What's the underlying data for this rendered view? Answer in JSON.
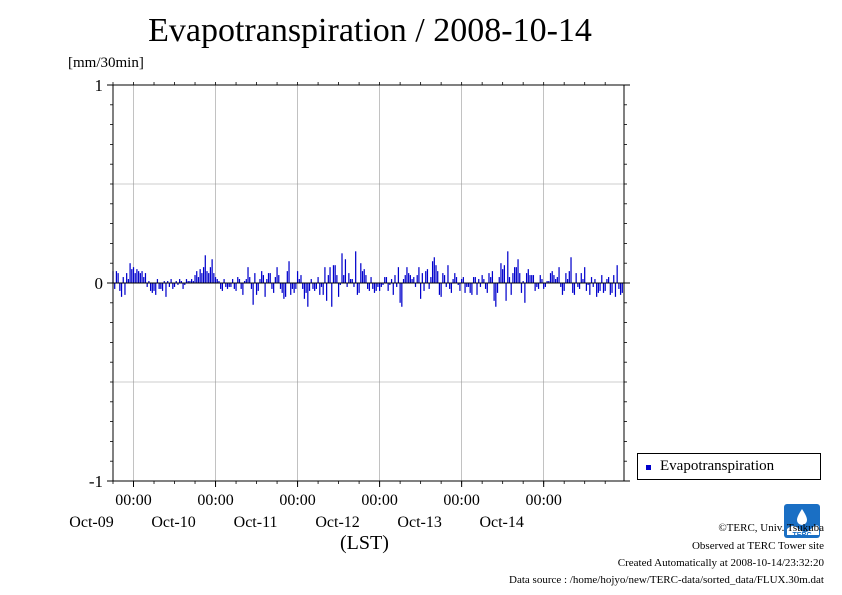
{
  "chart_data": {
    "type": "bar",
    "title": "Evapotranspiration / 2008-10-14",
    "ylabel": "[mm/30min]",
    "xlabel": "(LST)",
    "ylim": [
      -1,
      1
    ],
    "yticks": [
      "1",
      "0",
      "-1"
    ],
    "x_start": "2008-10-08T18:00",
    "x_end": "2008-10-14T23:30",
    "x_ticks": [
      {
        "time": "00:00",
        "date": "Oct-09"
      },
      {
        "time": "00:00",
        "date": "Oct-10"
      },
      {
        "time": "00:00",
        "date": "Oct-11"
      },
      {
        "time": "00:00",
        "date": "Oct-12"
      },
      {
        "time": "00:00",
        "date": "Oct-13"
      },
      {
        "time": "00:00",
        "date": "Oct-14"
      }
    ],
    "grid": true,
    "legend_position": "bottom-right",
    "series": [
      {
        "name": "Evapotranspiration",
        "color": "#0000cc",
        "interval_minutes": 30,
        "values": [
          0.06,
          -0.03,
          0.06,
          0.05,
          -0.04,
          -0.07,
          0.03,
          -0.06,
          0.05,
          0.02,
          0.1,
          0.07,
          0.08,
          0.05,
          0.07,
          0.06,
          0.05,
          0.06,
          0.03,
          0.05,
          -0.02,
          0.01,
          -0.04,
          -0.05,
          -0.04,
          -0.06,
          0.02,
          -0.03,
          -0.03,
          -0.04,
          0.01,
          -0.07,
          0.01,
          -0.02,
          0.02,
          -0.03,
          -0.02,
          0.01,
          -0.01,
          0.02,
          0.01,
          -0.03,
          -0.01,
          0.02,
          0.01,
          0.01,
          0.02,
          0.01,
          0.04,
          0.06,
          0.03,
          0.07,
          0.05,
          0.08,
          0.14,
          0.06,
          0.05,
          0.08,
          0.12,
          0.05,
          0.03,
          0.02,
          0.01,
          -0.03,
          -0.04,
          0.02,
          -0.02,
          -0.03,
          -0.02,
          -0.02,
          0.02,
          -0.03,
          -0.04,
          0.03,
          0.02,
          -0.03,
          -0.06,
          0.01,
          0.02,
          0.08,
          0.03,
          -0.03,
          -0.11,
          0.05,
          -0.06,
          -0.04,
          0.02,
          0.06,
          0.04,
          -0.07,
          0.02,
          0.05,
          0.05,
          -0.03,
          -0.05,
          0.03,
          0.08,
          0.04,
          -0.03,
          -0.05,
          -0.08,
          -0.07,
          0.06,
          0.11,
          -0.06,
          -0.03,
          -0.05,
          -0.03,
          0.06,
          0.02,
          0.04,
          -0.03,
          -0.08,
          -0.05,
          -0.12,
          -0.04,
          0.02,
          -0.03,
          -0.04,
          -0.03,
          0.03,
          -0.06,
          -0.02,
          -0.06,
          0.08,
          -0.09,
          0.04,
          0.08,
          -0.12,
          0.09,
          0.09,
          0.04,
          -0.07,
          -0.01,
          0.15,
          0.04,
          0.12,
          -0.02,
          0.05,
          0.02,
          0.02,
          -0.02,
          0.16,
          -0.06,
          -0.05,
          0.1,
          0.06,
          0.07,
          0.04,
          -0.03,
          -0.04,
          0.03,
          -0.03,
          -0.05,
          -0.04,
          -0.02,
          -0.04,
          -0.02,
          -0.01,
          0.03,
          0.03,
          -0.04,
          -0.01,
          0.02,
          -0.06,
          0.04,
          -0.02,
          0.08,
          -0.1,
          -0.12,
          0.02,
          0.04,
          0.08,
          0.05,
          0.04,
          0.02,
          0.03,
          -0.02,
          0.04,
          0.08,
          -0.08,
          0.05,
          -0.04,
          0.06,
          0.07,
          -0.03,
          0.03,
          0.11,
          0.13,
          0.09,
          0.06,
          -0.06,
          -0.07,
          0.05,
          0.04,
          -0.02,
          0.09,
          -0.03,
          -0.05,
          0.02,
          0.05,
          0.03,
          -0.01,
          -0.04,
          0.02,
          0.03,
          -0.05,
          -0.02,
          -0.02,
          -0.05,
          -0.06,
          0.03,
          0.03,
          -0.06,
          0.02,
          -0.02,
          0.04,
          0.02,
          -0.03,
          -0.05,
          0.05,
          0.03,
          0.06,
          -0.09,
          -0.12,
          -0.05,
          0.03,
          0.1,
          0.07,
          0.09,
          -0.09,
          0.16,
          0.03,
          -0.06,
          0.05,
          0.08,
          0.08,
          0.12,
          0.05,
          -0.05,
          0.01,
          -0.1,
          0.05,
          0.07,
          0.04,
          0.04,
          0.04,
          -0.04,
          -0.02,
          -0.03,
          0.04,
          0.02,
          -0.03,
          -0.02,
          0.01,
          0.01,
          0.05,
          0.06,
          0.04,
          0.02,
          0.03,
          0.08,
          -0.02,
          -0.06,
          -0.04,
          0.05,
          0.02,
          0.06,
          0.13,
          -0.05,
          -0.06,
          0.05,
          -0.02,
          -0.03,
          0.05,
          0.02,
          0.08,
          -0.04,
          -0.01,
          -0.06,
          0.03,
          -0.02,
          0.02,
          -0.07,
          -0.05,
          -0.04,
          0.04,
          -0.05,
          -0.04,
          0.02,
          0.03,
          -0.06,
          -0.05,
          0.04,
          -0.07,
          0.09,
          -0.03,
          -0.06,
          -0.05
        ]
      }
    ]
  },
  "credits": {
    "copyright": "©TERC, Univ. Tsukuba",
    "site": "Observed at TERC Tower site",
    "created": "Created Automatically at 2008-10-14/23:32:20",
    "source": "Data source : /home/hojyo/new/TERC-data/sorted_data/FLUX.30m.dat"
  },
  "logo": {
    "text": "TERC",
    "color": "#1a6fc4"
  }
}
